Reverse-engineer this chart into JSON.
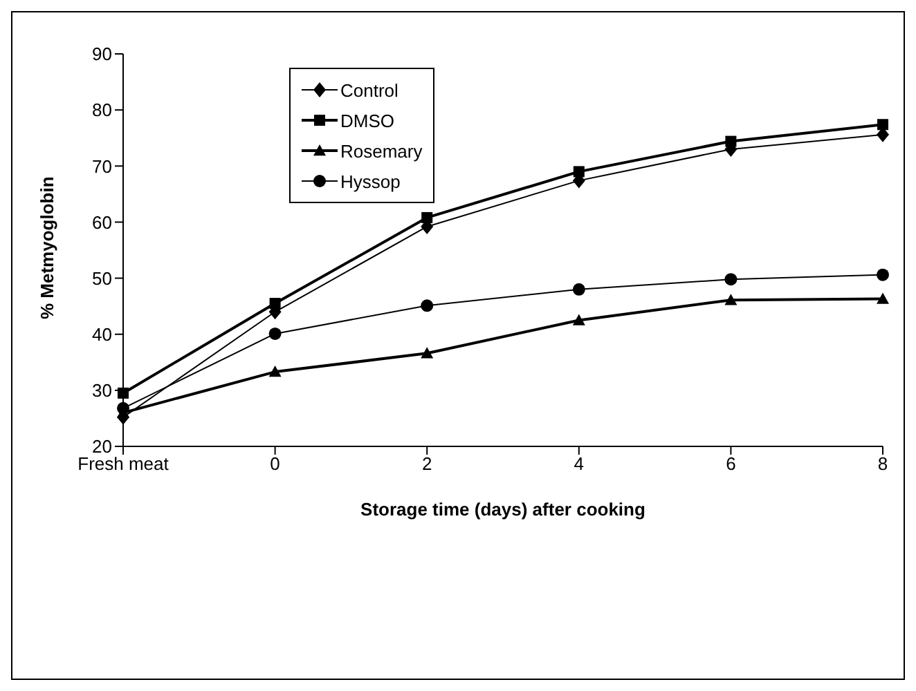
{
  "chart_data": {
    "type": "line",
    "xlabel": "Storage time (days) after cooking",
    "ylabel": "% Metmyoglobin",
    "categories": [
      "Fresh meat",
      "0",
      "2",
      "4",
      "6",
      "8"
    ],
    "ylim": [
      20,
      90
    ],
    "yticks": [
      20,
      30,
      40,
      50,
      60,
      70,
      80,
      90
    ],
    "grid": false,
    "legend": "top left",
    "line_style": "solid",
    "series": [
      {
        "name": "Control",
        "color": "#000000",
        "marker": "diamond",
        "values": [
          25.2,
          44.0,
          59.2,
          67.4,
          73.0,
          75.6
        ]
      },
      {
        "name": "DMSO",
        "color": "#000000",
        "marker": "square",
        "values": [
          29.5,
          45.5,
          60.8,
          69.0,
          74.4,
          77.4
        ]
      },
      {
        "name": "Rosemary",
        "color": "#000000",
        "marker": "triangle",
        "values": [
          26.0,
          33.3,
          36.6,
          42.5,
          46.1,
          46.3
        ]
      },
      {
        "name": "Hyssop",
        "color": "#000000",
        "marker": "circle",
        "values": [
          26.8,
          40.1,
          45.1,
          48.0,
          49.8,
          50.6
        ]
      }
    ]
  }
}
